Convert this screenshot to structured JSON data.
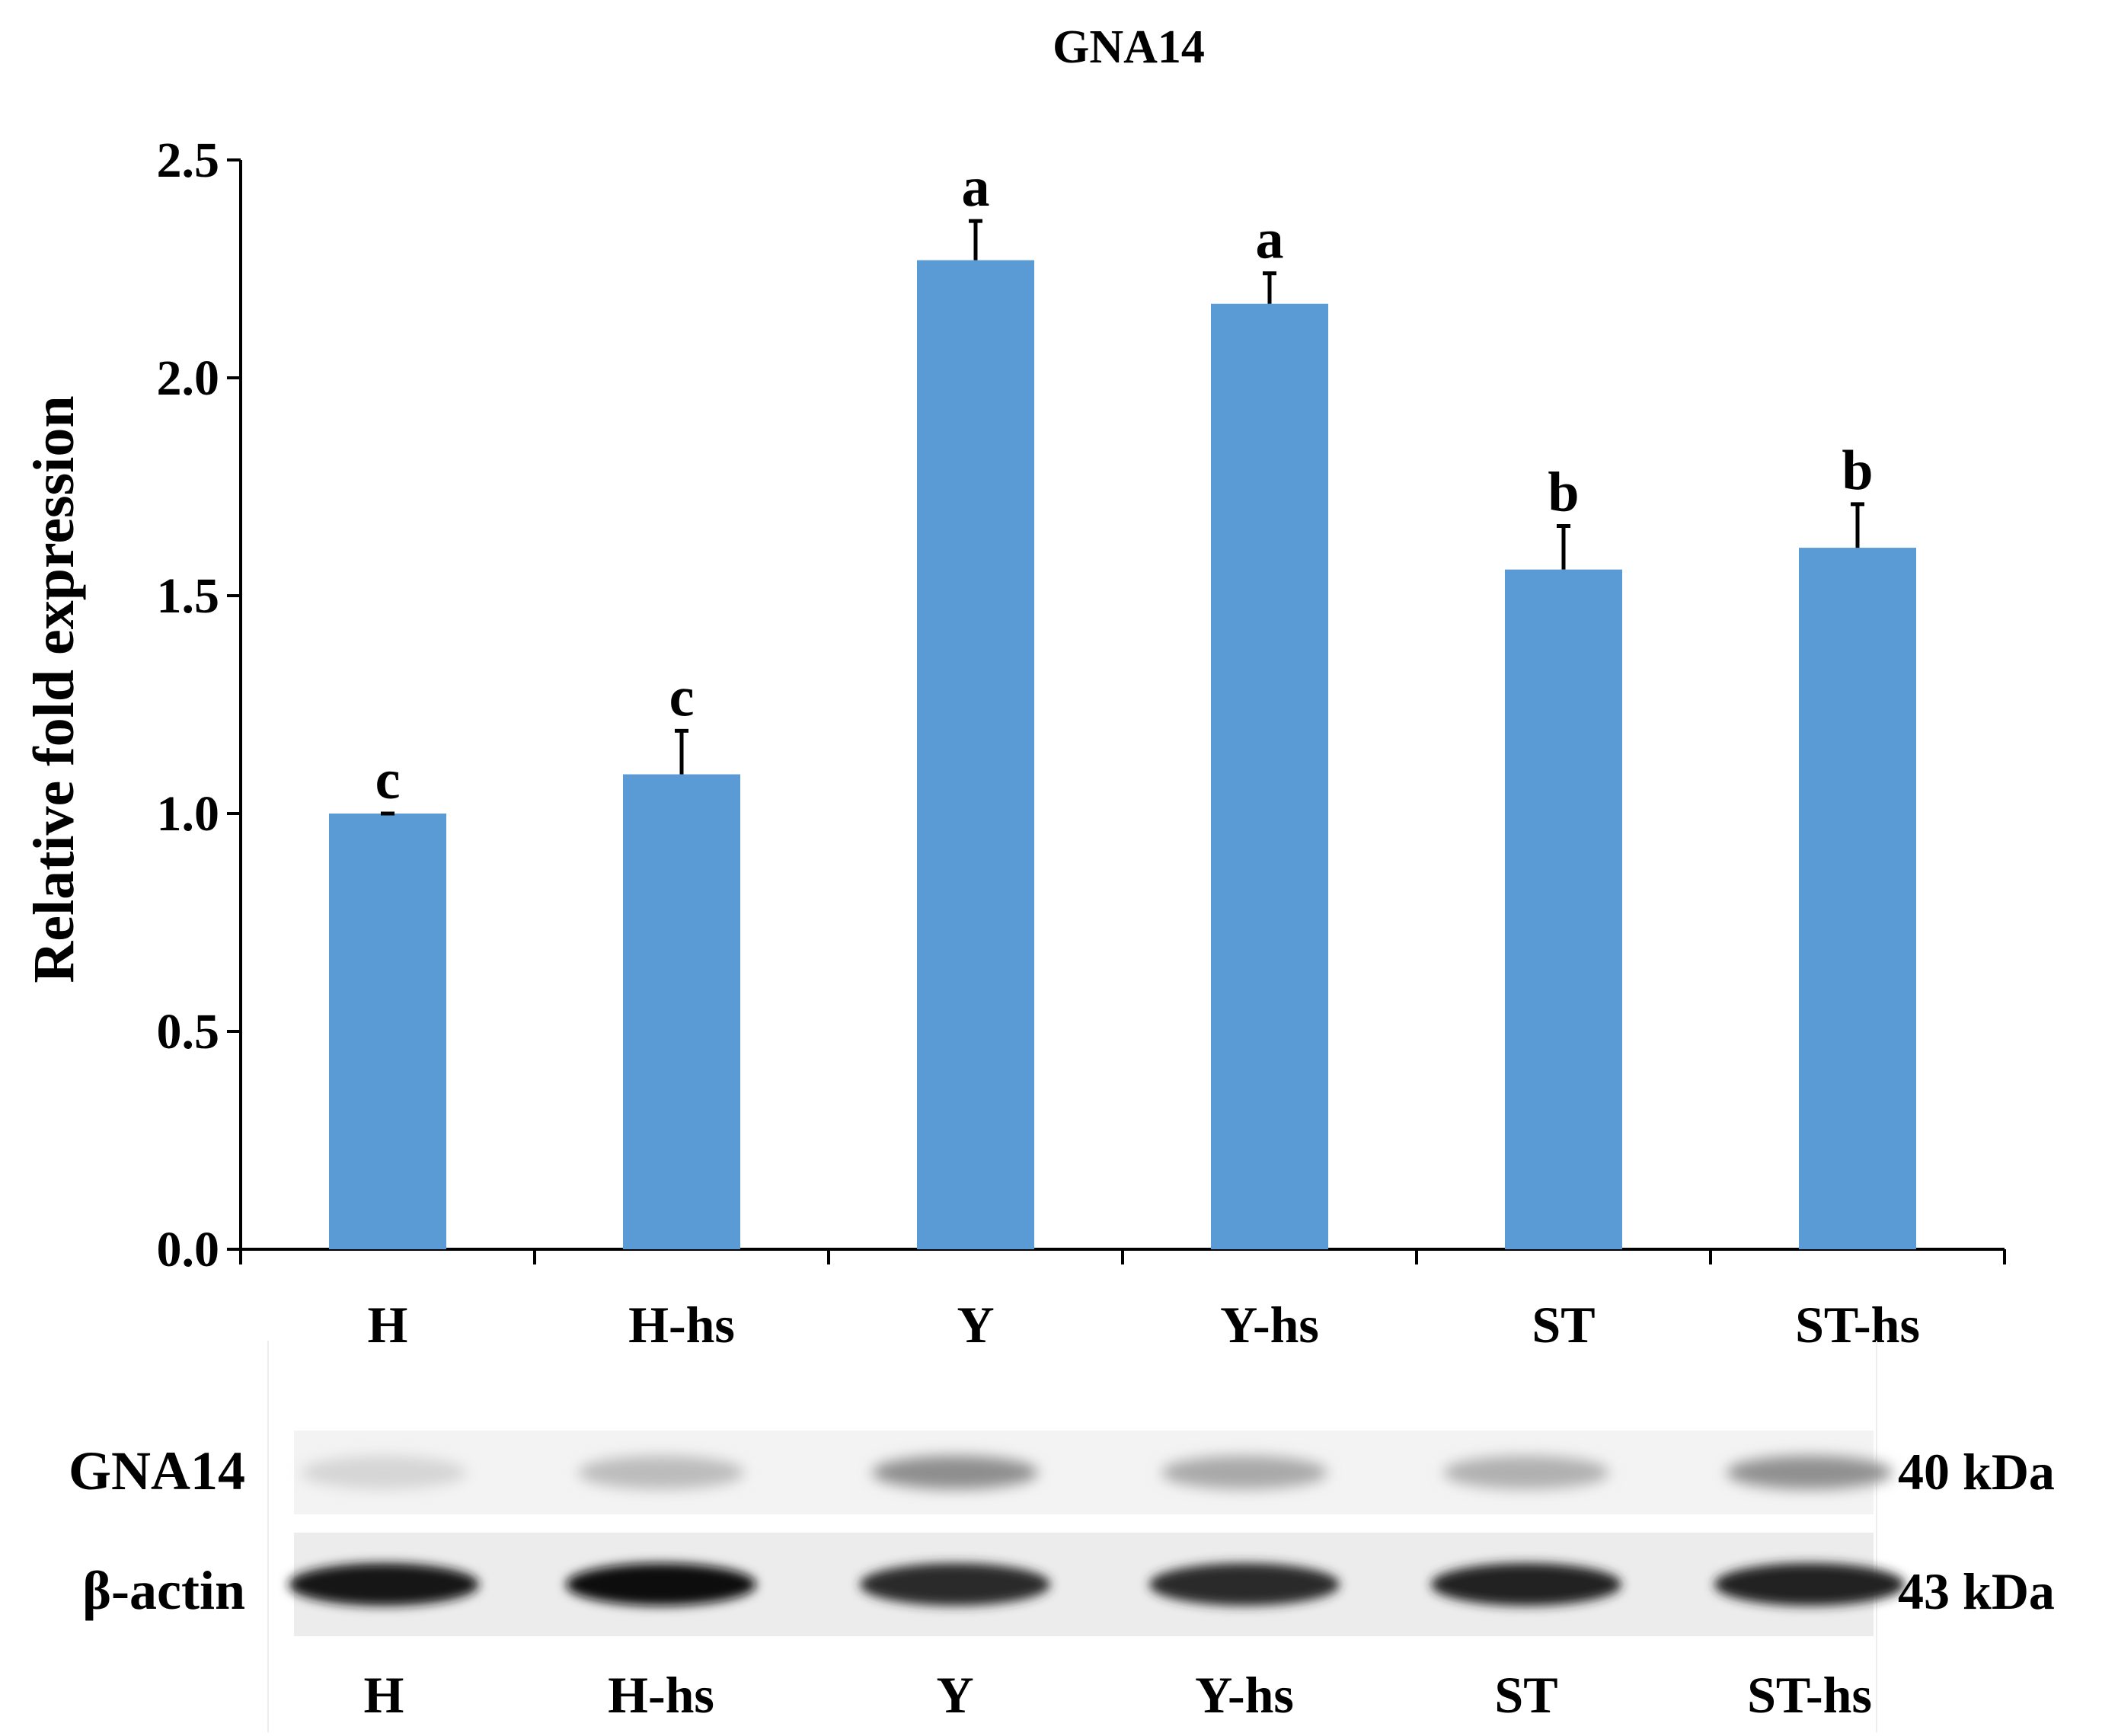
{
  "chart_data": {
    "type": "bar",
    "title": "GNA14",
    "xlabel": "",
    "ylabel": "Relative fold expression",
    "ylim": [
      0,
      2.5
    ],
    "yticks": [
      "0.0",
      "0.5",
      "1.0",
      "1.5",
      "2.0",
      "2.5"
    ],
    "categories": [
      "H",
      "H-hs",
      "Y",
      "Y-hs",
      "ST",
      "ST-hs"
    ],
    "values": [
      1.0,
      1.09,
      2.27,
      2.17,
      1.56,
      1.61
    ],
    "errors": [
      0.0,
      0.1,
      0.09,
      0.07,
      0.1,
      0.1
    ],
    "significance_letters": [
      "c",
      "c",
      "a",
      "a",
      "b",
      "b"
    ],
    "bar_color": "#5b9bd5",
    "grid": false
  },
  "blot": {
    "rows": [
      {
        "label": "GNA14",
        "size": "40 kDa",
        "intensity": [
          0.14,
          0.25,
          0.45,
          0.33,
          0.3,
          0.44
        ]
      },
      {
        "label": "β-actin",
        "size": "43 kDa",
        "intensity": [
          0.98,
          1.0,
          0.88,
          0.88,
          0.92,
          0.92
        ]
      }
    ],
    "lane_labels": [
      "H",
      "H-hs",
      "Y",
      "Y-hs",
      "ST",
      "ST-hs"
    ]
  }
}
